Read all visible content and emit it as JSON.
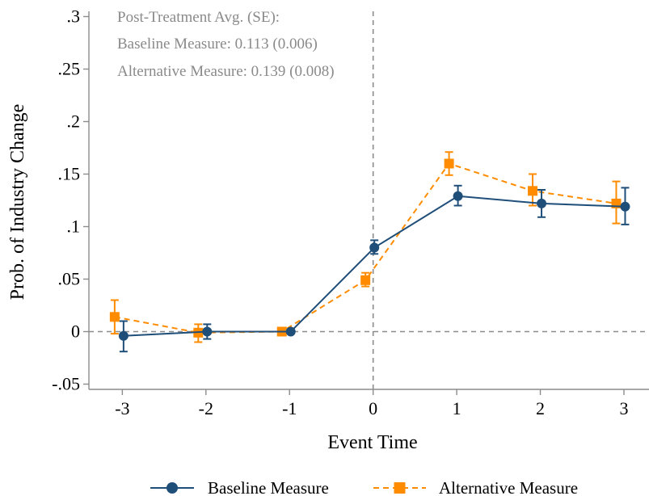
{
  "chart_data": {
    "type": "line",
    "xlabel": "Event Time",
    "ylabel": "Prob. of Industry Change",
    "xlim": [
      -3.4,
      3.3
    ],
    "ylim": [
      -0.055,
      0.305
    ],
    "x_ticks": [
      -3,
      -2,
      -1,
      0,
      1,
      2,
      3
    ],
    "x_tick_labels": [
      "-3",
      "-2",
      "-1",
      "0",
      "1",
      "2",
      "3"
    ],
    "y_ticks": [
      -0.05,
      0,
      0.05,
      0.1,
      0.15,
      0.2,
      0.25,
      0.3
    ],
    "y_tick_labels": [
      "-.05",
      "0",
      ".05",
      ".1",
      ".15",
      ".2",
      ".25",
      ".3"
    ],
    "reference_lines": {
      "horizontal_y": 0,
      "vertical_x": 0,
      "style": "dashed",
      "color": "#8c8c8c"
    },
    "grid": false,
    "annotations": [
      "Post-Treatment Avg. (SE):",
      "Baseline Measure: 0.113 (0.006)",
      "Alternative Measure: 0.139 (0.008)"
    ],
    "series": [
      {
        "name": "Baseline Measure",
        "color": "#1f4e79",
        "marker": "circle",
        "line_style": "solid",
        "x": [
          -3,
          -2,
          -1,
          0,
          1,
          2,
          3
        ],
        "y": [
          -0.004,
          0.0,
          0.0,
          0.08,
          0.129,
          0.122,
          0.119
        ],
        "ci_low": [
          -0.019,
          -0.007,
          0.0,
          0.074,
          0.12,
          0.109,
          0.102
        ],
        "ci_high": [
          0.01,
          0.007,
          0.0,
          0.087,
          0.139,
          0.135,
          0.137
        ]
      },
      {
        "name": "Alternative Measure",
        "color": "#ff8c00",
        "marker": "square",
        "line_style": "dashed",
        "x": [
          -3,
          -2,
          -1,
          0,
          1,
          2,
          3
        ],
        "y": [
          0.014,
          -0.001,
          0.0,
          0.049,
          0.16,
          0.134,
          0.122
        ],
        "ci_low": [
          -0.002,
          -0.01,
          0.0,
          0.043,
          0.149,
          0.12,
          0.103
        ],
        "ci_high": [
          0.03,
          0.007,
          0.0,
          0.056,
          0.171,
          0.15,
          0.143
        ]
      }
    ],
    "legend": {
      "position": "bottom",
      "entries": [
        "Baseline Measure",
        "Alternative Measure"
      ]
    }
  }
}
